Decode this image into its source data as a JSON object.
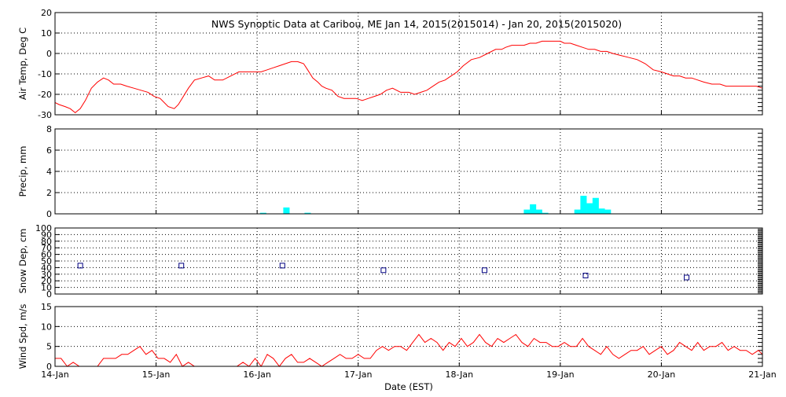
{
  "chart_data": {
    "title": "NWS Synoptic Data at Caribou, ME   Jan 14, 2015(2015014) - Jan 20, 2015(2015020)",
    "xlabel": "Date (EST)",
    "x_tick_labels": [
      "14-Jan",
      "15-Jan",
      "16-Jan",
      "17-Jan",
      "18-Jan",
      "19-Jan",
      "20-Jan",
      "21-Jan"
    ],
    "xlim_days": [
      0,
      7
    ],
    "grid": true,
    "panels": [
      {
        "type": "line",
        "ylabel": "Air Temp, Deg C",
        "ylim": [
          -30,
          20
        ],
        "yticks": [
          20,
          10,
          0,
          -10,
          -20,
          -30
        ],
        "color": "#ff0000",
        "x_days": [
          0,
          0.04,
          0.1,
          0.15,
          0.2,
          0.25,
          0.3,
          0.36,
          0.42,
          0.48,
          0.53,
          0.58,
          0.65,
          0.71,
          0.78,
          0.85,
          0.92,
          0.98,
          1.04,
          1.12,
          1.18,
          1.22,
          1.27,
          1.32,
          1.38,
          1.45,
          1.52,
          1.58,
          1.66,
          1.74,
          1.82,
          1.9,
          1.97,
          2.04,
          2.1,
          2.16,
          2.22,
          2.28,
          2.34,
          2.4,
          2.46,
          2.5,
          2.55,
          2.6,
          2.64,
          2.68,
          2.74,
          2.8,
          2.86,
          2.92,
          2.98,
          3.04,
          3.1,
          3.16,
          3.22,
          3.28,
          3.34,
          3.42,
          3.5,
          3.56,
          3.62,
          3.68,
          3.74,
          3.8,
          3.86,
          3.92,
          3.98,
          4.04,
          4.12,
          4.2,
          4.28,
          4.36,
          4.42,
          4.46,
          4.52,
          4.58,
          4.64,
          4.7,
          4.76,
          4.82,
          4.88,
          4.94,
          5.0,
          5.04,
          5.1,
          5.16,
          5.22,
          5.28,
          5.34,
          5.4,
          5.46,
          5.52,
          5.6,
          5.68,
          5.76,
          5.84,
          5.92,
          6.0,
          6.06,
          6.12,
          6.18,
          6.24,
          6.3,
          6.36,
          6.42,
          6.5,
          6.58,
          6.64,
          6.7,
          6.76,
          6.82,
          6.88,
          6.94,
          7.0
        ],
        "values": [
          -24,
          -25,
          -26,
          -27,
          -29,
          -27,
          -23,
          -17,
          -14,
          -12,
          -13,
          -15,
          -15,
          -16,
          -17,
          -18,
          -19,
          -21,
          -22,
          -26,
          -27,
          -25,
          -21,
          -17,
          -13,
          -12,
          -11,
          -13,
          -13,
          -11,
          -9,
          -9,
          -9,
          -9,
          -8,
          -7,
          -6,
          -5,
          -4,
          -4,
          -5,
          -8,
          -12,
          -14,
          -16,
          -17,
          -18,
          -21,
          -22,
          -22,
          -22,
          -23,
          -22,
          -21,
          -20,
          -18,
          -17,
          -19,
          -19,
          -20,
          -19,
          -18,
          -16,
          -14,
          -13,
          -11,
          -9,
          -6,
          -3,
          -2,
          0,
          2,
          2,
          3,
          4,
          4,
          4,
          5,
          5,
          6,
          6,
          6,
          6,
          5,
          5,
          4,
          3,
          2,
          2,
          1,
          1,
          0,
          -1,
          -2,
          -3,
          -5,
          -8,
          -9,
          -10,
          -11,
          -11,
          -12,
          -12,
          -13,
          -14,
          -15,
          -15,
          -16,
          -16,
          -16,
          -16,
          -16,
          -16,
          -17
        ]
      },
      {
        "type": "bar",
        "ylabel": "Precip, mm",
        "ylim": [
          0,
          8
        ],
        "yticks": [
          0,
          2,
          4,
          6,
          8
        ],
        "color": "#00ffff",
        "bar_width_days": 0.0625,
        "x_days": [
          2.06,
          2.29,
          2.5,
          4.67,
          4.73,
          4.79,
          4.85,
          5.17,
          5.23,
          5.29,
          5.35,
          5.41,
          5.47
        ],
        "values": [
          0.1,
          0.6,
          0.1,
          0.4,
          0.9,
          0.4,
          0.1,
          0.4,
          1.7,
          1.0,
          1.5,
          0.5,
          0.4
        ]
      },
      {
        "type": "scatter",
        "ylabel": "Snow Dep, cm",
        "ylim": [
          0,
          100
        ],
        "yticks": [
          0,
          10,
          20,
          30,
          40,
          50,
          60,
          70,
          80,
          90,
          100
        ],
        "color": "#000080",
        "x_days": [
          0.25,
          1.25,
          2.25,
          3.25,
          4.25,
          5.25,
          6.25
        ],
        "values": [
          43,
          43,
          43,
          36,
          36,
          28,
          25
        ]
      },
      {
        "type": "line",
        "ylabel": "Wind Spd, m/s",
        "ylim": [
          0,
          15
        ],
        "yticks": [
          0,
          5,
          10,
          15
        ],
        "color": "#ff0000",
        "x_days": [
          0,
          0.06,
          0.12,
          0.18,
          0.24,
          0.3,
          0.36,
          0.42,
          0.48,
          0.54,
          0.6,
          0.66,
          0.72,
          0.78,
          0.84,
          0.9,
          0.96,
          1.02,
          1.08,
          1.14,
          1.2,
          1.26,
          1.32,
          1.38,
          1.44,
          1.5,
          1.56,
          1.62,
          1.68,
          1.74,
          1.8,
          1.86,
          1.92,
          1.98,
          2.04,
          2.1,
          2.16,
          2.22,
          2.28,
          2.34,
          2.4,
          2.46,
          2.52,
          2.58,
          2.64,
          2.7,
          2.76,
          2.82,
          2.88,
          2.94,
          3.0,
          3.06,
          3.12,
          3.18,
          3.24,
          3.3,
          3.36,
          3.42,
          3.48,
          3.54,
          3.6,
          3.66,
          3.72,
          3.78,
          3.84,
          3.9,
          3.96,
          4.02,
          4.08,
          4.14,
          4.2,
          4.26,
          4.32,
          4.38,
          4.44,
          4.5,
          4.56,
          4.62,
          4.68,
          4.74,
          4.8,
          4.86,
          4.92,
          4.98,
          5.04,
          5.1,
          5.16,
          5.22,
          5.28,
          5.34,
          5.4,
          5.46,
          5.52,
          5.58,
          5.64,
          5.7,
          5.76,
          5.82,
          5.88,
          5.94,
          6.0,
          6.06,
          6.12,
          6.18,
          6.24,
          6.3,
          6.36,
          6.42,
          6.48,
          6.54,
          6.6,
          6.66,
          6.72,
          6.78,
          6.84,
          6.9,
          6.96,
          7.0
        ],
        "values": [
          2,
          2,
          0,
          1,
          0,
          0,
          0,
          0,
          2,
          2,
          2,
          3,
          3,
          4,
          5,
          3,
          4,
          2,
          2,
          1,
          3,
          0,
          1,
          0,
          0,
          0,
          0,
          0,
          0,
          0,
          0,
          1,
          0,
          2,
          0,
          3,
          2,
          0,
          2,
          3,
          1,
          1,
          2,
          1,
          0,
          1,
          2,
          3,
          2,
          2,
          3,
          2,
          2,
          4,
          5,
          4,
          5,
          5,
          4,
          6,
          8,
          6,
          7,
          6,
          4,
          6,
          5,
          7,
          5,
          6,
          8,
          6,
          5,
          7,
          6,
          7,
          8,
          6,
          5,
          7,
          6,
          6,
          5,
          5,
          6,
          5,
          5,
          7,
          5,
          4,
          3,
          5,
          3,
          2,
          3,
          4,
          4,
          5,
          3,
          4,
          5,
          3,
          4,
          6,
          5,
          4,
          6,
          4,
          5,
          5,
          6,
          4,
          5,
          4,
          4,
          3,
          4,
          3
        ]
      }
    ]
  }
}
